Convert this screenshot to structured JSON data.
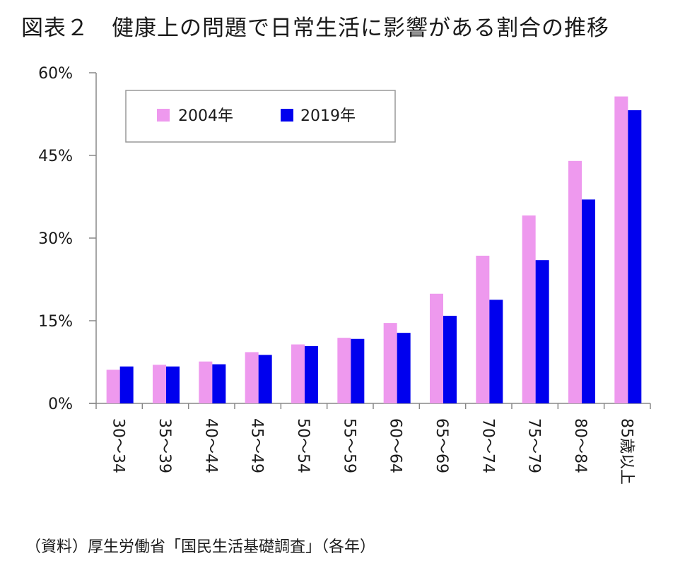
{
  "title": "図表２　健康上の問題で日常生活に影響がある割合の推移",
  "source": "（資料）厚生労働省「国民生活基礎調査」（各年）",
  "chart_data": {
    "type": "bar",
    "title": "図表２　健康上の問題で日常生活に影響がある割合の推移",
    "xlabel": "",
    "ylabel": "",
    "ylim": [
      0,
      60
    ],
    "yticks": [
      0,
      15,
      30,
      45,
      60
    ],
    "ytick_labels": [
      "0%",
      "15%",
      "30%",
      "45%",
      "60%"
    ],
    "categories": [
      "30～34",
      "35～39",
      "40～44",
      "45～49",
      "50～54",
      "55～59",
      "60～64",
      "65～69",
      "70～74",
      "75～79",
      "80～84",
      "85歳以上"
    ],
    "series": [
      {
        "name": "2004年",
        "color": "#ee99ee",
        "values": [
          6.1,
          7.0,
          7.6,
          9.3,
          10.7,
          11.9,
          14.6,
          19.9,
          26.8,
          34.1,
          44.0,
          55.7
        ]
      },
      {
        "name": "2019年",
        "color": "#0000ee",
        "values": [
          6.7,
          6.7,
          7.1,
          8.8,
          10.4,
          11.7,
          12.8,
          15.9,
          18.8,
          26.0,
          37.0,
          53.2
        ]
      }
    ],
    "legend": {
      "position": "top-left",
      "entries": [
        "2004年",
        "2019年"
      ]
    }
  }
}
